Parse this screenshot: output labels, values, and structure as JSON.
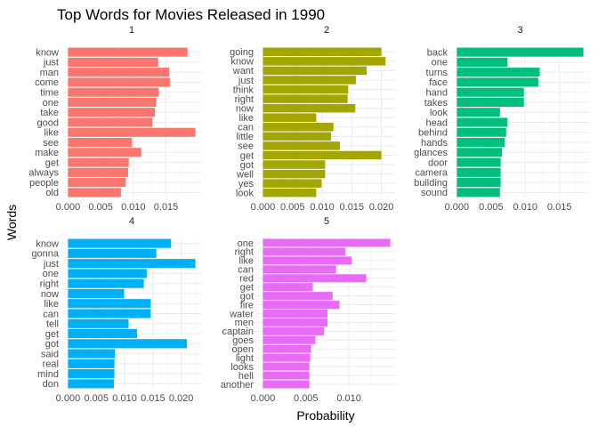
{
  "chart_data": {
    "type": "bar",
    "orientation": "horizontal",
    "title": "Top Words for Movies Released in 1990",
    "xlabel": "Probability",
    "ylabel": "Words",
    "grid": true,
    "legend": "none",
    "panels": [
      {
        "name": "1",
        "color": "#F8766D",
        "xlim": [
          0,
          0.0195
        ],
        "ticks": [
          0,
          0.005,
          0.01,
          0.015
        ],
        "tick_labels": [
          "0.000",
          "0.005",
          "0.010",
          "0.015"
        ],
        "categories": [
          "know",
          "just",
          "man",
          "come",
          "time",
          "one",
          "take",
          "good",
          "like",
          "see",
          "make",
          "get",
          "always",
          "people",
          "old"
        ],
        "values": [
          0.0183,
          0.0138,
          0.0155,
          0.0156,
          0.0139,
          0.0135,
          0.0133,
          0.0129,
          0.0195,
          0.0098,
          0.0112,
          0.0093,
          0.0092,
          0.0088,
          0.0081
        ]
      },
      {
        "name": "2",
        "color": "#A3A500",
        "xlim": [
          0,
          0.0215
        ],
        "ticks": [
          0,
          0.005,
          0.01,
          0.015,
          0.02
        ],
        "tick_labels": [
          "0.000",
          "0.005",
          "0.010",
          "0.015",
          "0.020"
        ],
        "categories": [
          "going",
          "know",
          "want",
          "just",
          "think",
          "right",
          "now",
          "like",
          "can",
          "little",
          "see",
          "get",
          "got",
          "well",
          "yes",
          "look"
        ],
        "values": [
          0.02,
          0.0207,
          0.0175,
          0.0157,
          0.0144,
          0.0143,
          0.0156,
          0.009,
          0.0119,
          0.0115,
          0.013,
          0.02,
          0.0105,
          0.0105,
          0.0099,
          0.009
        ]
      },
      {
        "name": "3",
        "color": "#00BF7D",
        "xlim": [
          0,
          0.0185
        ],
        "ticks": [
          0,
          0.005,
          0.01,
          0.015
        ],
        "tick_labels": [
          "0.000",
          "0.005",
          "0.010",
          "0.015"
        ],
        "categories": [
          "back",
          "one",
          "turns",
          "face",
          "hand",
          "takes",
          "look",
          "head",
          "behind",
          "hands",
          "glances",
          "door",
          "camera",
          "building",
          "sound"
        ],
        "values": [
          0.0185,
          0.0074,
          0.0121,
          0.0119,
          0.0098,
          0.0098,
          0.0063,
          0.0074,
          0.0072,
          0.007,
          0.0066,
          0.0064,
          0.0064,
          0.0064,
          0.0063
        ]
      },
      {
        "name": "4",
        "color": "#00B0F6",
        "xlim": [
          0,
          0.0225
        ],
        "ticks": [
          0,
          0.005,
          0.01,
          0.015,
          0.02
        ],
        "tick_labels": [
          "0.000",
          "0.005",
          "0.010",
          "0.015",
          "0.020"
        ],
        "categories": [
          "know",
          "gonna",
          "just",
          "one",
          "right",
          "now",
          "like",
          "can",
          "tell",
          "get",
          "got",
          "said",
          "real",
          "mind",
          "don"
        ],
        "values": [
          0.0182,
          0.0156,
          0.0225,
          0.0139,
          0.0134,
          0.0099,
          0.0146,
          0.0146,
          0.0107,
          0.0122,
          0.021,
          0.0083,
          0.0082,
          0.0082,
          0.0081
        ]
      },
      {
        "name": "5",
        "color": "#E76BF3",
        "xlim": [
          0,
          0.0148
        ],
        "ticks": [
          0,
          0.005,
          0.01
        ],
        "tick_labels": [
          "0.000",
          "0.005",
          "0.010"
        ],
        "categories": [
          "one",
          "right",
          "like",
          "can",
          "red",
          "get",
          "got",
          "fire",
          "water",
          "men",
          "captain",
          "goes",
          "open",
          "light",
          "looks",
          "hell",
          "another"
        ],
        "values": [
          0.0148,
          0.0096,
          0.0103,
          0.0085,
          0.012,
          0.0058,
          0.0081,
          0.0089,
          0.0075,
          0.0075,
          0.0071,
          0.0061,
          0.0056,
          0.0055,
          0.0054,
          0.0054,
          0.0054
        ]
      }
    ]
  }
}
